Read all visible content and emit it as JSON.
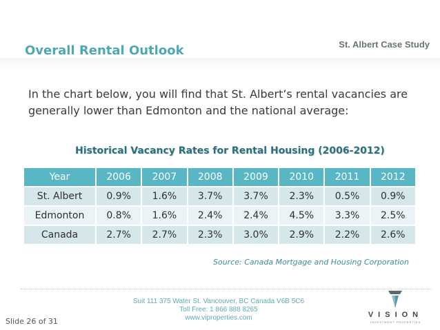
{
  "header": {
    "case_study": "St. Albert Case Study",
    "title": "Overall Rental Outlook"
  },
  "intro": "In the chart below, you will find that St. Albert’s rental vacancies are generally lower than Edmonton and the national average:",
  "chart_data": {
    "type": "table",
    "title": "Historical Vacancy Rates for Rental Housing (2006-2012)",
    "columns": [
      "Year",
      "2006",
      "2007",
      "2008",
      "2009",
      "2010",
      "2011",
      "2012"
    ],
    "rows": [
      [
        "St. Albert",
        "0.9%",
        "1.6%",
        "3.7%",
        "3.7%",
        "2.3%",
        "0.5%",
        "0.9%"
      ],
      [
        "Edmonton",
        "0.8%",
        "1.6%",
        "2.4%",
        "2.4%",
        "4.5%",
        "3.3%",
        "2.5%"
      ],
      [
        "Canada",
        "2.7%",
        "2.7%",
        "2.3%",
        "3.0%",
        "2.9%",
        "2.2%",
        "2.6%"
      ]
    ],
    "source": "Source: Canada Mortgage and Housing Corporation"
  },
  "footer": {
    "address": "Suit 111 375 Water St. Vancouver, BC Canada V6B 5C6",
    "toll_free": "Toll Free: 1 866 888 8265",
    "website": "www.viproperties.com",
    "slide": "Slide 26 of 31"
  },
  "logo": {
    "word": "VISION",
    "tagline": "INVESTMENT PROPERTIES"
  },
  "colors": {
    "accent": "#4ea8b0",
    "header_cell": "#59b7c5",
    "row_dark": "#d6e7eb",
    "row_light": "#eaf3f5"
  }
}
